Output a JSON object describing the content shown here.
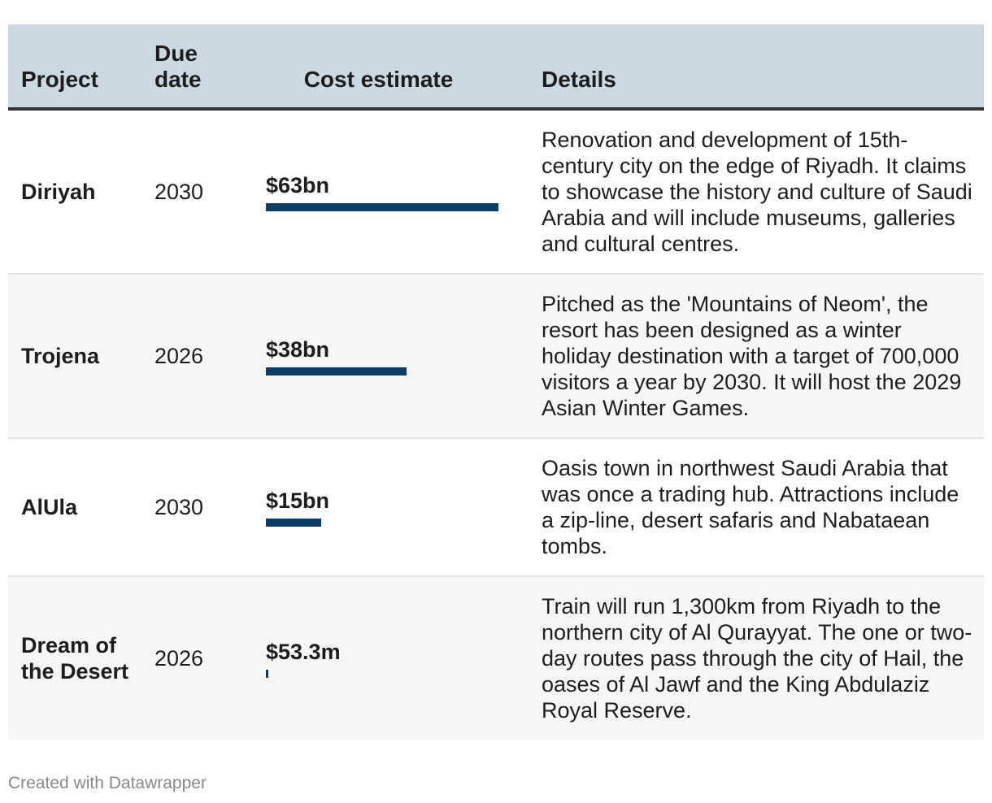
{
  "header": {
    "project": "Project",
    "due_date": "Due date",
    "cost": "Cost estimate",
    "details": "Details"
  },
  "rows": [
    {
      "project": "Diriyah",
      "due": "2030",
      "cost_label": "$63bn",
      "details": "Renovation and development of 15th-century city on the edge of Riyadh. It claims to showcase the history and culture of Saudi Arabia and will include museums, galleries and cultural centres."
    },
    {
      "project": "Trojena",
      "due": "2026",
      "cost_label": "$38bn",
      "details": "Pitched as the 'Mountains of Neom', the resort has been designed as a winter holiday destination with a target of 700,000 visitors a year by 2030. It will host the 2029 Asian Winter Games."
    },
    {
      "project": "AlUla",
      "due": "2030",
      "cost_label": "$15bn",
      "details": "Oasis town in northwest Saudi Arabia that was once a trading hub. Attractions include a zip-line, desert safaris and Nabataean tombs."
    },
    {
      "project": "Dream of the Desert",
      "due": "2026",
      "cost_label": "$53.3m",
      "details": "Train will run 1,300km from Riyadh to the northern city of Al Qurayyat. The one or two-day routes pass through the city of Hail, the oases of Al Jawf and the King Abdulaziz Royal Reserve."
    }
  ],
  "chart_data": {
    "type": "table",
    "columns": [
      "Project",
      "Due date",
      "Cost estimate",
      "Details"
    ],
    "categories": [
      "Diriyah",
      "Trojena",
      "AlUla",
      "Dream of the Desert"
    ],
    "values": [
      63,
      38,
      15,
      0.0533
    ],
    "unit": "$bn",
    "bar_color": "#0b3d6b",
    "header_color": "#cbd9e2"
  },
  "footer": "Created with Datawrapper"
}
